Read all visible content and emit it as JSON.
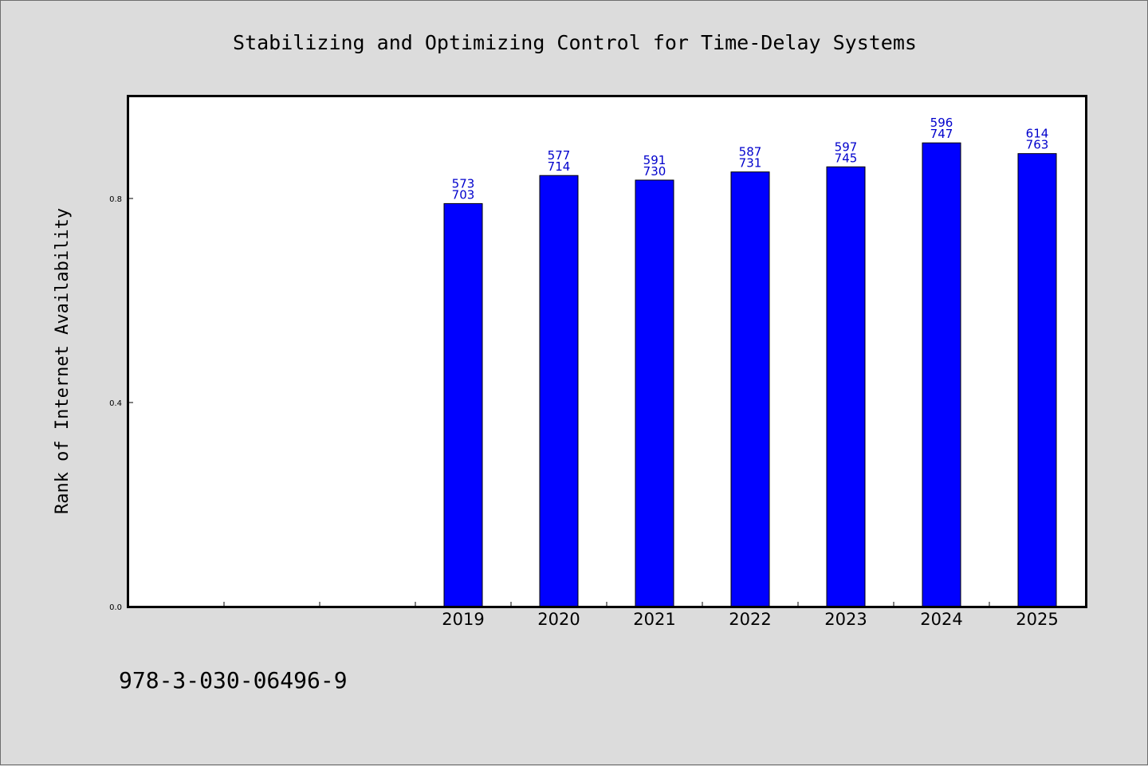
{
  "chart_data": {
    "type": "bar",
    "title": "Stabilizing and Optimizing Control for Time-Delay Systems",
    "xlabel": "",
    "ylabel": "Rank of Internet Availability",
    "footer": "978-3-030-06496-9",
    "categories": [
      "",
      "",
      "",
      "2019",
      "2020",
      "2021",
      "2022",
      "2023",
      "2024",
      "2025"
    ],
    "values": [
      null,
      null,
      null,
      0.79,
      0.845,
      0.836,
      0.852,
      0.862,
      0.909,
      0.888
    ],
    "label_top": [
      "",
      "",
      "",
      "573",
      "577",
      "591",
      "587",
      "597",
      "596",
      "614"
    ],
    "label_bottom": [
      "",
      "",
      "",
      "703",
      "714",
      "730",
      "731",
      "745",
      "747",
      "763"
    ],
    "ylim": [
      0,
      1.0
    ],
    "yticks": [
      0.0,
      0.4,
      0.8
    ],
    "ytick_labels": [
      "0.0",
      "0.4",
      "0.8"
    ],
    "grid": false,
    "legend": "none",
    "colors": {
      "bar": "#0000ff",
      "bar_edge": "#000000",
      "data_label": "#0000cc",
      "plot_bg": "#ffffff",
      "figure_bg": "#dcdcdc"
    }
  }
}
